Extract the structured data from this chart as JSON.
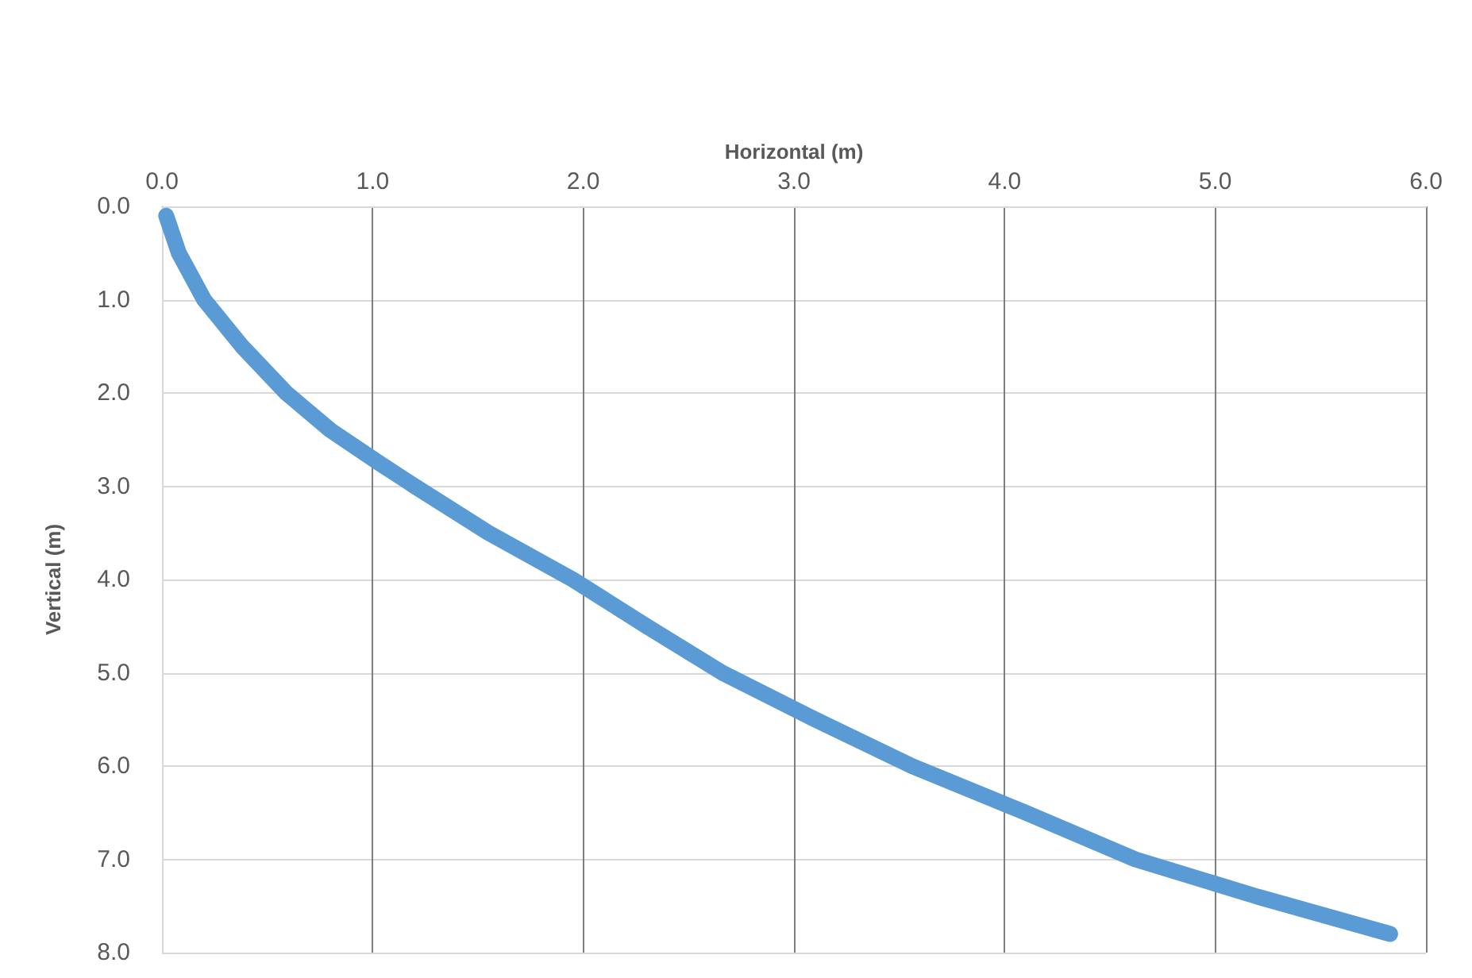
{
  "chart_data": {
    "type": "line",
    "xlabel": "Horizontal (m)",
    "ylabel": "Vertical (m)",
    "x": [
      0.02,
      0.08,
      0.2,
      0.38,
      0.59,
      0.8,
      1.03,
      1.2,
      1.55,
      1.95,
      2.3,
      2.66,
      3.1,
      3.56,
      4.1,
      4.62,
      5.2,
      5.83
    ],
    "series": [
      {
        "color": "#5b9bd5",
        "values": [
          0.1,
          0.5,
          1.0,
          1.5,
          2.0,
          2.4,
          2.75,
          3.0,
          3.5,
          4.0,
          4.5,
          5.0,
          5.5,
          6.0,
          6.5,
          7.0,
          7.4,
          7.8
        ]
      }
    ],
    "xlim": [
      0,
      6
    ],
    "xticks": [
      {
        "value": 0,
        "label": "0.0"
      },
      {
        "value": 1,
        "label": "1.0"
      },
      {
        "value": 2,
        "label": "2.0"
      },
      {
        "value": 3,
        "label": "3.0"
      },
      {
        "value": 4,
        "label": "4.0"
      },
      {
        "value": 5,
        "label": "5.0"
      },
      {
        "value": 6,
        "label": "6.0"
      }
    ],
    "ylim": [
      8,
      0
    ],
    "yticks": [
      {
        "value": 0,
        "label": "0.0"
      },
      {
        "value": 1,
        "label": "1.0"
      },
      {
        "value": 2,
        "label": "2.0"
      },
      {
        "value": 3,
        "label": "3.0"
      },
      {
        "value": 4,
        "label": "4.0"
      },
      {
        "value": 5,
        "label": "5.0"
      },
      {
        "value": 6,
        "label": "6.0"
      },
      {
        "value": 7,
        "label": "7.0"
      },
      {
        "value": 8,
        "label": "8.0"
      }
    ],
    "grid": true,
    "line_style": "solid"
  }
}
